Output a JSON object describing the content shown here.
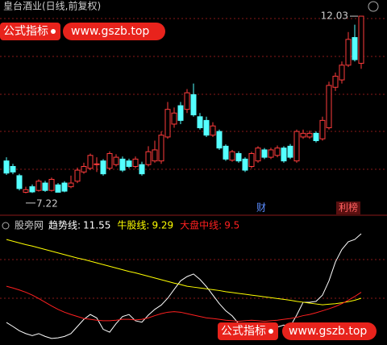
{
  "header": {
    "title": "皇台酒业(日线,前复权)"
  },
  "chart_data": [
    {
      "type": "candlestick",
      "open": [
        8.1,
        7.95,
        7.7,
        7.25,
        7.4,
        7.3,
        7.5,
        7.3,
        7.45,
        7.5,
        7.4,
        7.55,
        7.8,
        7.9,
        8.0,
        8.1,
        7.9,
        8.0,
        8.15,
        8.1,
        7.95,
        8.0,
        8.0,
        8.1,
        8.1,
        8.75,
        9.1,
        9.6,
        9.5,
        9.9,
        9.3,
        9.2,
        8.8,
        8.9,
        8.5,
        8.12,
        8.3,
        8.15,
        7.95,
        8.1,
        8.4,
        8.2,
        8.25,
        8.45,
        8.5,
        8.1,
        8.75,
        8.75,
        8.85,
        8.7,
        9.0,
        10.1,
        10.3,
        10.7,
        11.45,
        10.75
      ],
      "high": [
        8.2,
        8.02,
        7.75,
        7.4,
        7.46,
        7.6,
        7.56,
        7.65,
        7.5,
        7.55,
        7.7,
        7.92,
        8.05,
        8.3,
        8.2,
        8.15,
        8.36,
        8.28,
        8.22,
        8.16,
        8.22,
        8.08,
        8.5,
        8.65,
        8.9,
        9.7,
        9.55,
        9.7,
        10.05,
        10.2,
        9.4,
        9.3,
        9.15,
        8.95,
        8.55,
        8.4,
        8.36,
        8.2,
        8.35,
        8.5,
        8.45,
        8.46,
        8.52,
        8.5,
        8.56,
        8.95,
        8.95,
        8.92,
        8.9,
        9.3,
        10.25,
        10.5,
        10.8,
        11.6,
        11.8,
        12.03
      ],
      "low": [
        7.72,
        7.74,
        7.3,
        7.22,
        7.23,
        7.27,
        7.26,
        7.27,
        7.24,
        7.25,
        7.36,
        7.5,
        7.75,
        7.85,
        7.8,
        7.7,
        7.85,
        7.95,
        7.8,
        7.9,
        7.9,
        7.7,
        7.95,
        8.05,
        8.02,
        8.7,
        9.0,
        9.1,
        9.4,
        9.3,
        8.95,
        8.75,
        8.75,
        8.4,
        8.1,
        8.08,
        8.05,
        7.8,
        7.9,
        8.05,
        8.15,
        8.15,
        8.2,
        8.05,
        8.15,
        8.05,
        8.7,
        8.7,
        8.6,
        8.65,
        8.95,
        10.0,
        10.2,
        10.65,
        10.8,
        10.6
      ],
      "close": [
        7.77,
        7.8,
        7.35,
        7.32,
        7.26,
        7.55,
        7.3,
        7.6,
        7.25,
        7.28,
        7.5,
        7.85,
        7.95,
        8.25,
        8.02,
        7.75,
        8.3,
        8.2,
        7.85,
        7.95,
        8.15,
        7.75,
        8.35,
        8.4,
        8.8,
        9.5,
        9.4,
        9.2,
        9.95,
        9.35,
        9.0,
        8.8,
        9.05,
        8.45,
        8.15,
        8.35,
        8.1,
        7.85,
        8.3,
        8.45,
        8.2,
        8.4,
        8.45,
        8.1,
        8.2,
        8.9,
        8.85,
        8.85,
        8.65,
        9.2,
        10.15,
        10.4,
        10.7,
        11.4,
        10.85,
        12.03
      ],
      "up_color": "#ff3c3c",
      "down_color": "#54ffff",
      "ylim": [
        6.67,
        12.25
      ]
    },
    {
      "type": "line",
      "title": "股旁网",
      "series": [
        {
          "name": "趋势线:",
          "color": "#ffffff",
          "values": [
            8.44,
            8.3,
            8.15,
            8.05,
            7.98,
            8.05,
            7.95,
            7.88,
            7.9,
            7.95,
            8.05,
            8.3,
            8.55,
            8.72,
            8.6,
            8.2,
            8.1,
            8.4,
            8.65,
            8.72,
            8.5,
            8.45,
            8.7,
            8.9,
            9.05,
            9.29,
            9.6,
            9.9,
            10.05,
            10.14,
            9.95,
            9.7,
            9.4,
            9.1,
            8.85,
            8.67,
            8.4,
            8.2,
            8.16,
            8.25,
            8.3,
            8.22,
            8.28,
            8.35,
            8.3,
            8.7,
            9.15,
            9.15,
            9.18,
            9.4,
            9.9,
            10.56,
            11.0,
            11.27,
            11.35,
            11.55
          ]
        },
        {
          "name": "牛股线:",
          "color": "#ffff00",
          "values": [
            11.35,
            11.29,
            11.23,
            11.17,
            11.12,
            11.06,
            11.0,
            10.94,
            10.88,
            10.82,
            10.76,
            10.7,
            10.65,
            10.59,
            10.53,
            10.47,
            10.41,
            10.35,
            10.29,
            10.23,
            10.18,
            10.12,
            10.06,
            10.0,
            9.94,
            9.88,
            9.82,
            9.77,
            9.71,
            9.68,
            9.65,
            9.62,
            9.59,
            9.56,
            9.52,
            9.49,
            9.46,
            9.43,
            9.4,
            9.37,
            9.34,
            9.31,
            9.28,
            9.25,
            9.22,
            9.18,
            9.15,
            9.12,
            9.09,
            9.06,
            9.08,
            9.1,
            9.13,
            9.17,
            9.22,
            9.29
          ]
        },
        {
          "name": "大盘中线:",
          "color": "#ff2020",
          "values": [
            9.71,
            9.65,
            9.58,
            9.5,
            9.4,
            9.28,
            9.15,
            9.02,
            8.9,
            8.8,
            8.72,
            8.65,
            8.58,
            8.55,
            8.52,
            8.5,
            8.5,
            8.52,
            8.55,
            8.55,
            8.53,
            8.55,
            8.6,
            8.68,
            8.75,
            8.8,
            8.82,
            8.8,
            8.75,
            8.7,
            8.65,
            8.6,
            8.58,
            8.55,
            8.52,
            8.5,
            8.48,
            8.5,
            8.52,
            8.5,
            8.48,
            8.5,
            8.52,
            8.55,
            8.58,
            8.62,
            8.68,
            8.72,
            8.78,
            8.85,
            8.92,
            9.0,
            9.1,
            9.22,
            9.35,
            9.5
          ]
        }
      ],
      "ylim": [
        7.65,
        12.06
      ]
    }
  ],
  "markers": [
    "财",
    "利榜"
  ],
  "watermarks": [
    {
      "label": "公式指标",
      "url": "www.gszb.top"
    },
    {
      "label": "公式指标",
      "url": "www.gszb.top"
    }
  ]
}
